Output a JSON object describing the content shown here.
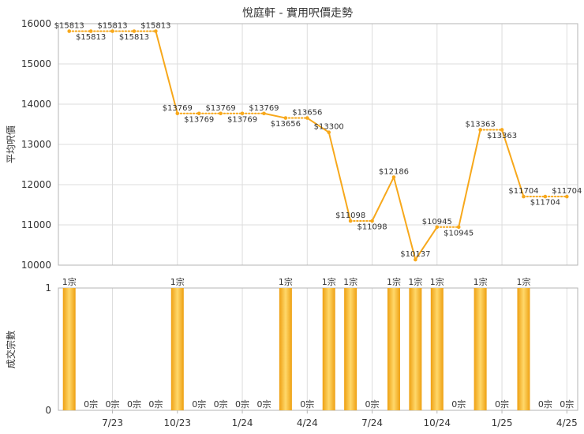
{
  "title": "悅庭軒 - 實用呎價走勢",
  "xticks": [
    "7/23",
    "10/23",
    "1/24",
    "4/24",
    "7/24",
    "10/24",
    "1/25",
    "4/25"
  ],
  "colors": {
    "line": "#f7a81b",
    "bar": "#eea012",
    "bar_highlight": "#ffd86a",
    "grid": "#dddddd",
    "frame": "#b5b5b5",
    "text": "#333333"
  },
  "chart_data": [
    {
      "type": "line",
      "ylabel": "平均呎價",
      "ylim": [
        10000,
        16000
      ],
      "yticks": [
        10000,
        11000,
        12000,
        13000,
        14000,
        15000,
        16000
      ],
      "grid": true,
      "value_prefix": "$",
      "x": [
        "5/23",
        "6/23",
        "7/23",
        "8/23",
        "9/23",
        "10/23",
        "11/23",
        "12/23",
        "1/24",
        "2/24",
        "3/24",
        "4/24",
        "5/24",
        "6/24",
        "7/24",
        "8/24",
        "9/24",
        "10/24",
        "11/24",
        "12/24",
        "1/25",
        "2/25",
        "3/25",
        "4/25"
      ],
      "values": [
        15813,
        15813,
        15813,
        15813,
        15813,
        13769,
        13769,
        13769,
        13769,
        13769,
        13656,
        13656,
        13300,
        11098,
        11098,
        12186,
        10137,
        10945,
        10945,
        13363,
        13363,
        11704,
        11704,
        11704
      ]
    },
    {
      "type": "bar",
      "ylabel": "成交宗數",
      "ylim": [
        0,
        1
      ],
      "yticks": [
        0,
        1
      ],
      "grid": true,
      "value_suffix": "宗",
      "x": [
        "5/23",
        "6/23",
        "7/23",
        "8/23",
        "9/23",
        "10/23",
        "11/23",
        "12/23",
        "1/24",
        "2/24",
        "3/24",
        "4/24",
        "5/24",
        "6/24",
        "7/24",
        "8/24",
        "9/24",
        "10/24",
        "11/24",
        "12/24",
        "1/25",
        "2/25",
        "3/25",
        "4/25"
      ],
      "values": [
        1,
        0,
        0,
        0,
        0,
        1,
        0,
        0,
        0,
        0,
        1,
        0,
        1,
        1,
        0,
        1,
        1,
        1,
        0,
        1,
        0,
        1,
        0,
        0
      ]
    }
  ]
}
